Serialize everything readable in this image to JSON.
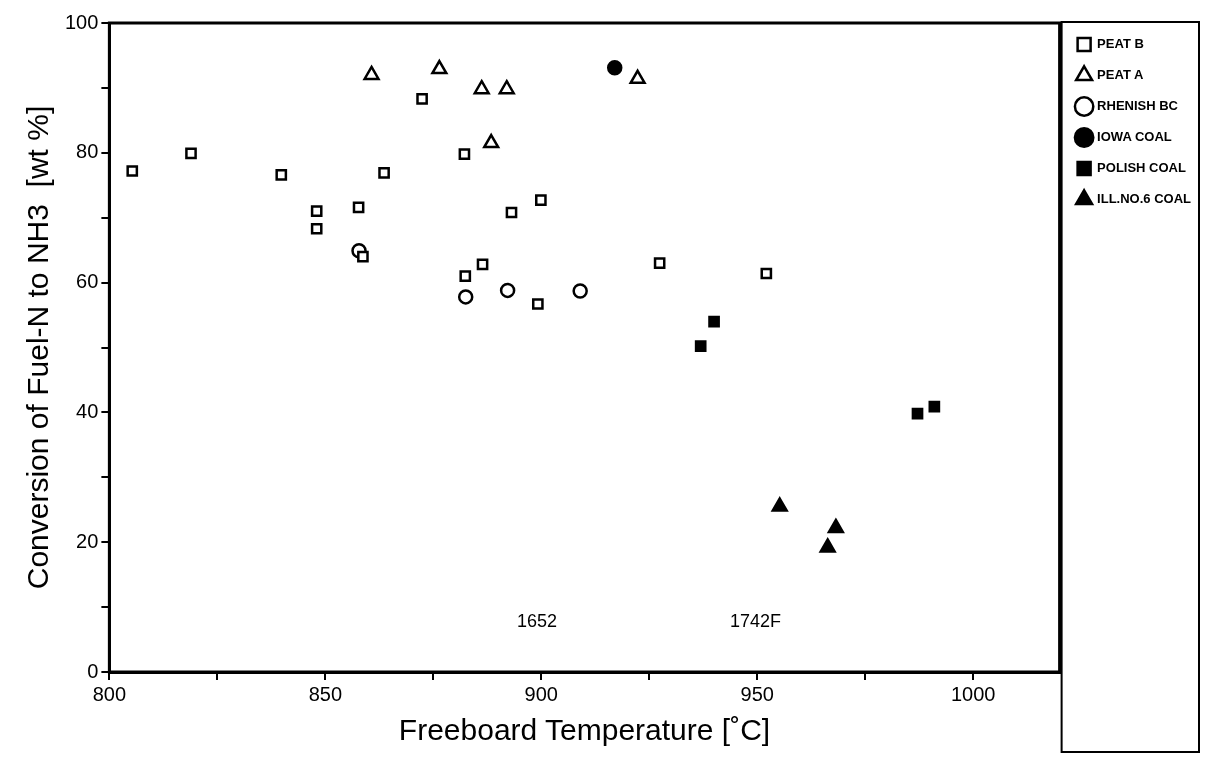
{
  "chart_data": {
    "type": "scatter",
    "xlabel": "Freeboard Temperature [˚C]",
    "ylabel": "Conversion of Fuel-N to NH3  [wt %]",
    "xlim": [
      800,
      1020
    ],
    "xticks": [
      800,
      {
        "value": 825,
        "label": null
      },
      850,
      {
        "value": 875,
        "label": null
      },
      900,
      {
        "value": 925,
        "label": null
      },
      950,
      {
        "value": 975,
        "label": null
      },
      1000
    ],
    "ylim": [
      0,
      100
    ],
    "yticks": [
      0,
      {
        "value": 10,
        "label": null
      },
      20,
      {
        "value": 30,
        "label": null
      },
      40,
      {
        "value": 50,
        "label": null
      },
      60,
      {
        "value": 70,
        "label": null
      },
      80,
      {
        "value": 90,
        "label": null
      },
      100
    ],
    "grid": false,
    "legend": "top right",
    "annotations": [
      "1652",
      "1742F"
    ],
    "series": [
      {
        "name": "PEAT B",
        "color": "#ffffff",
        "marker": "square",
        "x": [
          805.3,
          818.9,
          839.8,
          848,
          848,
          857.7,
          858.7,
          863.6,
          872.4,
          882.2,
          882.4,
          886.4,
          893.1,
          899.9,
          899.2,
          927.4,
          952.1
        ],
        "values": [
          77.2,
          79.9,
          76.6,
          71,
          68.3,
          71.6,
          64,
          76.9,
          88.3,
          79.8,
          61,
          62.8,
          70.8,
          72.7,
          56.7,
          63,
          61.4
        ]
      },
      {
        "name": "PEAT A",
        "color": "#ffffff",
        "marker": "triangle",
        "x": [
          860.7,
          876.4,
          886.2,
          892,
          888.4,
          922.3
        ],
        "values": [
          92,
          92.9,
          89.8,
          89.8,
          81.5,
          91.4
        ]
      },
      {
        "name": "RHENISH BC",
        "color": "#ffffff",
        "marker": "circle",
        "x": [
          857.8,
          882.5,
          892.2,
          909
        ],
        "values": [
          64.9,
          57.8,
          58.8,
          58.7
        ]
      },
      {
        "name": "IOWA COAL",
        "color": "#000000",
        "marker": "circle",
        "x": [
          917
        ],
        "values": [
          93.1
        ]
      },
      {
        "name": "POLISH COAL",
        "color": "#000000",
        "marker": "square",
        "x": [
          940,
          936.9,
          987.1,
          991
        ],
        "values": [
          54,
          50.2,
          39.8,
          40.9
        ]
      },
      {
        "name": "ILL.NO.6 COAL",
        "color": "#000000",
        "marker": "triangle",
        "x": [
          955.2,
          968.2,
          966.3
        ],
        "values": [
          25.5,
          22.2,
          19.2
        ]
      }
    ]
  }
}
